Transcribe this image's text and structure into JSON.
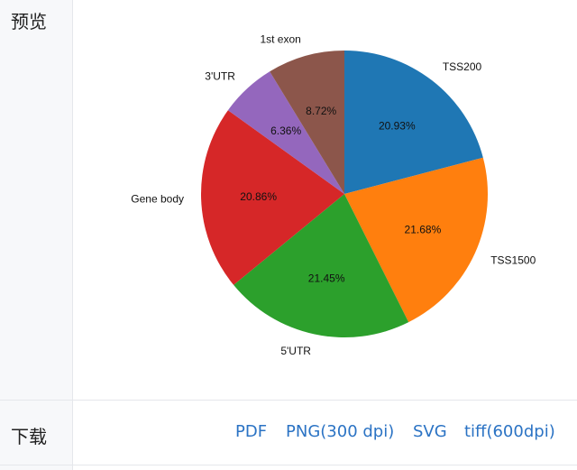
{
  "preview_label": "预览",
  "download_label": "下载",
  "download_links": [
    "PDF",
    "PNG(300 dpi)",
    "SVG",
    "tiff(600dpi)"
  ],
  "chart_data": {
    "type": "pie",
    "start_angle_deg": 90,
    "direction": "clockwise",
    "categories": [
      "TSS200",
      "TSS1500",
      "5'UTR",
      "Gene body",
      "3'UTR",
      "1st exon"
    ],
    "values": [
      20.93,
      21.68,
      21.45,
      20.86,
      6.36,
      8.72
    ],
    "value_labels": [
      "20.93%",
      "21.68%",
      "21.45%",
      "20.86%",
      "6.36%",
      "8.72%"
    ],
    "colors": [
      "#1f77b4",
      "#ff7f0e",
      "#2ca02c",
      "#d62728",
      "#9467bd",
      "#8c564b"
    ]
  }
}
